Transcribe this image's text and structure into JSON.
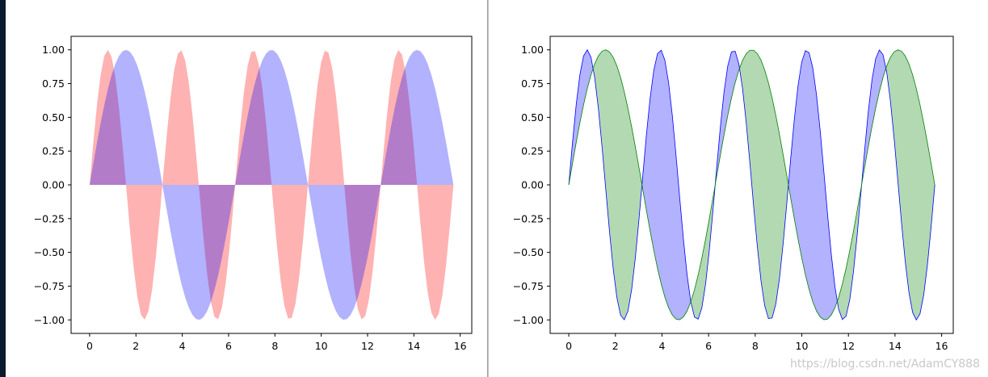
{
  "watermark": "https://blog.csdn.net/AdamCY888",
  "chart_data": [
    {
      "type": "area",
      "title": "",
      "xlabel": "",
      "ylabel": "",
      "xlim": [
        -0.8,
        16.5
      ],
      "ylim": [
        -1.1,
        1.1
      ],
      "xticks": [
        0,
        2,
        4,
        6,
        8,
        10,
        12,
        14,
        16
      ],
      "xtick_labels": [
        "0",
        "2",
        "4",
        "6",
        "8",
        "10",
        "12",
        "14",
        "16"
      ],
      "yticks": [
        1.0,
        0.75,
        0.5,
        0.25,
        0.0,
        -0.25,
        -0.5,
        -0.75,
        -1.0
      ],
      "ytick_labels": [
        "1.00",
        "0.75",
        "0.50",
        "0.25",
        "0.00",
        "−0.25",
        "−0.50",
        "−0.75",
        "−1.00"
      ],
      "x_range": [
        0,
        15.708
      ],
      "samples": 100,
      "grid": false,
      "legend": "none",
      "series": [
        {
          "function": "sin(2x)",
          "fill_to": 0,
          "fill_color": "#ff0000",
          "fill_alpha": 0.3,
          "line": false
        },
        {
          "function": "sin(x)",
          "fill_to": 0,
          "fill_color": "#0000ff",
          "fill_alpha": 0.3,
          "line": false
        }
      ]
    },
    {
      "type": "area",
      "title": "",
      "xlabel": "",
      "ylabel": "",
      "xlim": [
        -0.8,
        16.5
      ],
      "ylim": [
        -1.1,
        1.1
      ],
      "xticks": [
        0,
        2,
        4,
        6,
        8,
        10,
        12,
        14,
        16
      ],
      "xtick_labels": [
        "0",
        "2",
        "4",
        "6",
        "8",
        "10",
        "12",
        "14",
        "16"
      ],
      "yticks": [
        1.0,
        0.75,
        0.5,
        0.25,
        0.0,
        -0.25,
        -0.5,
        -0.75,
        -1.0
      ],
      "ytick_labels": [
        "1.00",
        "0.75",
        "0.50",
        "0.25",
        "0.00",
        "−0.25",
        "−0.50",
        "−0.75",
        "−1.00"
      ],
      "x_range": [
        0,
        15.708
      ],
      "samples": 100,
      "grid": false,
      "legend": "none",
      "series": [
        {
          "function": "sin(2x)",
          "line_color": "#0000ff"
        },
        {
          "function": "sin(x)",
          "line_color": "#008000"
        }
      ],
      "between_fills": [
        {
          "where": "sin(2x) > sin(x)",
          "fill_color": "#0000ff",
          "fill_alpha": 0.3
        },
        {
          "where": "sin(x) >= sin(2x)",
          "fill_color": "#008000",
          "fill_alpha": 0.3
        }
      ]
    }
  ]
}
